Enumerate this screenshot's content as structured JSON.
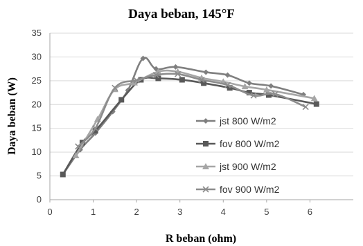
{
  "chart_data": {
    "type": "line",
    "title": "Daya beban, 145°F",
    "xlabel": "R beban (ohm)",
    "ylabel": "Daya beban (W)",
    "xlim": [
      0,
      7
    ],
    "ylim": [
      0,
      35
    ],
    "xticks": [
      "0",
      "1",
      "2",
      "3",
      "4",
      "5",
      "6"
    ],
    "yticks": [
      "0",
      "5",
      "10",
      "15",
      "20",
      "25",
      "30",
      "35"
    ],
    "grid": "horizontal",
    "legend_position": "right",
    "series": [
      {
        "name": "jst 800 W/m2",
        "color": "#7f7f7f",
        "marker": "diamond",
        "points": [
          [
            0.3,
            5.3
          ],
          [
            0.7,
            10.5
          ],
          [
            1.05,
            14.0
          ],
          [
            1.45,
            18.5
          ],
          [
            1.8,
            23.0
          ],
          [
            2.15,
            29.7
          ],
          [
            2.45,
            27.5
          ],
          [
            2.9,
            27.9
          ],
          [
            3.6,
            26.8
          ],
          [
            4.1,
            26.2
          ],
          [
            4.6,
            24.5
          ],
          [
            5.1,
            23.9
          ],
          [
            5.85,
            22.1
          ]
        ]
      },
      {
        "name": "fov 800 W/m2",
        "color": "#595959",
        "marker": "square",
        "points": [
          [
            0.3,
            5.3
          ],
          [
            0.75,
            12.0
          ],
          [
            1.05,
            14.5
          ],
          [
            1.65,
            21.0
          ],
          [
            2.1,
            25.2
          ],
          [
            2.5,
            25.5
          ],
          [
            3.05,
            25.2
          ],
          [
            3.55,
            24.5
          ],
          [
            4.15,
            23.5
          ],
          [
            4.6,
            22.5
          ],
          [
            5.05,
            22.0
          ],
          [
            6.15,
            20.1
          ]
        ]
      },
      {
        "name": "jst 900 W/m2",
        "color": "#a6a6a6",
        "marker": "triangle",
        "points": [
          [
            0.6,
            9.3
          ],
          [
            1.1,
            16.9
          ],
          [
            1.5,
            23.2
          ],
          [
            1.95,
            24.6
          ],
          [
            2.5,
            26.9
          ],
          [
            2.95,
            26.9
          ],
          [
            3.5,
            25.6
          ],
          [
            4.0,
            24.8
          ],
          [
            4.5,
            23.8
          ],
          [
            5.0,
            23.1
          ],
          [
            6.1,
            21.3
          ]
        ]
      },
      {
        "name": "fov 900 W/m2",
        "color": "#8c8c8c",
        "marker": "x",
        "points": [
          [
            0.65,
            11.2
          ],
          [
            1.05,
            15.0
          ],
          [
            1.5,
            23.5
          ],
          [
            2.0,
            25.1
          ],
          [
            2.45,
            26.2
          ],
          [
            2.95,
            26.4
          ],
          [
            3.5,
            25.2
          ],
          [
            4.1,
            24.1
          ],
          [
            4.7,
            21.9
          ],
          [
            5.2,
            22.2
          ],
          [
            5.9,
            19.5
          ]
        ]
      }
    ]
  }
}
